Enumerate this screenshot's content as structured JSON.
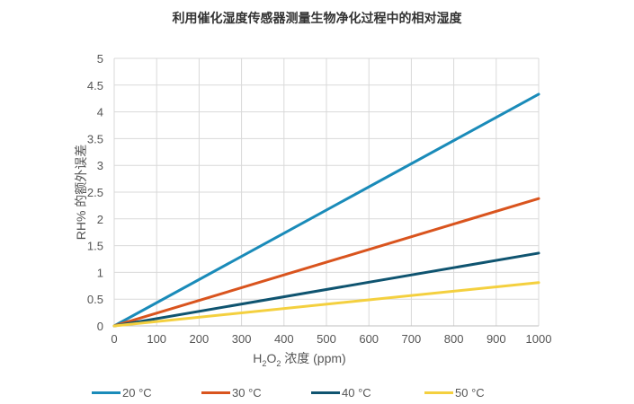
{
  "chart_data": {
    "type": "line",
    "title": "利用催化湿度传感器测量生物净化过程中的相对湿度",
    "xlabel_parts": [
      "H",
      "2",
      "O",
      "2",
      " 浓度 (ppm)"
    ],
    "ylabel": "RH% 的额外误差",
    "xlim": [
      0,
      1000
    ],
    "ylim": [
      0,
      5
    ],
    "xticks": [
      "0",
      "100",
      "200",
      "300",
      "400",
      "500",
      "600",
      "700",
      "800",
      "900",
      "1000"
    ],
    "yticks": [
      "0",
      "0.5",
      "1",
      "1.5",
      "2",
      "2.5",
      "3",
      "3.5",
      "4",
      "4.5",
      "5"
    ],
    "grid": true,
    "legend_position": "bottom",
    "series": [
      {
        "name": "20 °C",
        "color": "#1a8bb9",
        "x": [
          0,
          1000
        ],
        "y": [
          0,
          4.33
        ]
      },
      {
        "name": "30 °C",
        "color": "#d9541e",
        "x": [
          0,
          1000
        ],
        "y": [
          0,
          2.38
        ]
      },
      {
        "name": "40 °C",
        "color": "#0f5470",
        "x": [
          0,
          1000
        ],
        "y": [
          0,
          1.36
        ]
      },
      {
        "name": "50 °C",
        "color": "#f4d03f",
        "x": [
          0,
          1000
        ],
        "y": [
          0,
          0.81
        ]
      }
    ]
  }
}
